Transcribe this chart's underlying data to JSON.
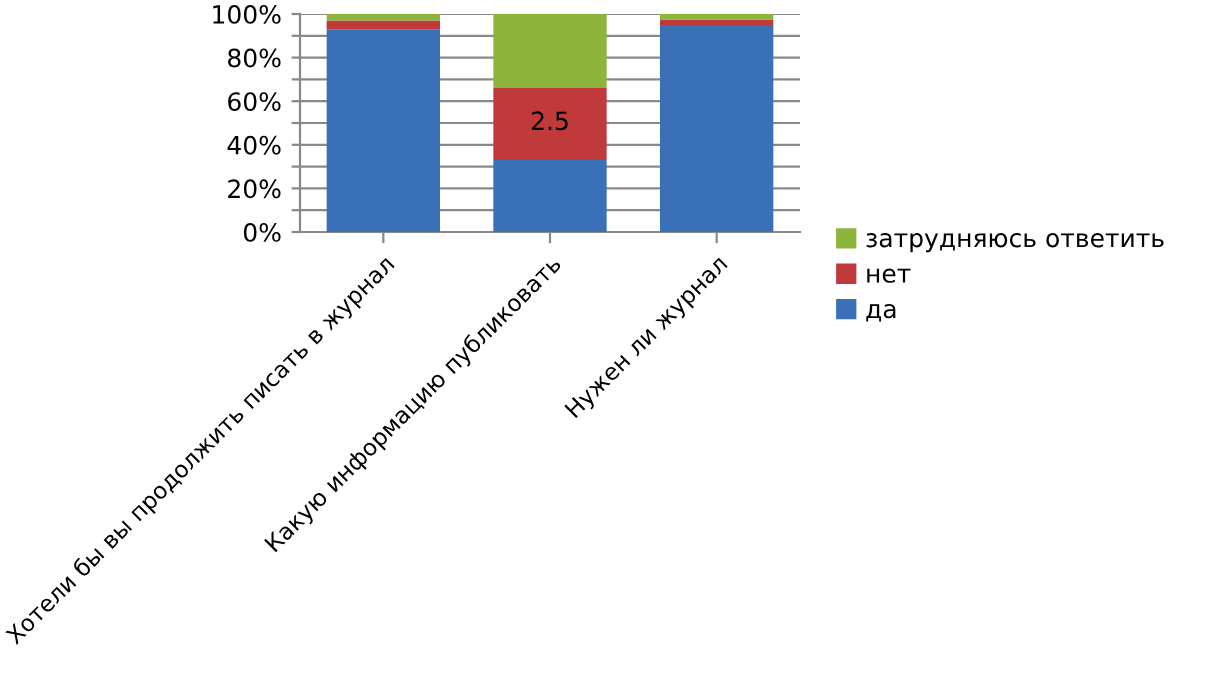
{
  "chart_data": {
    "type": "bar",
    "stacked": true,
    "categories": [
      "Хотели бы вы продолжить писать в журнал",
      "Какую информацию публиковать",
      "Нужен ли журнал"
    ],
    "series": [
      {
        "name": "да",
        "color": "#3a70b8",
        "values": [
          93,
          33,
          95
        ]
      },
      {
        "name": "нет",
        "color": "#c0393b",
        "values": [
          4,
          33,
          2.5
        ]
      },
      {
        "name": "затрудняюсь ответить",
        "color": "#8db53c",
        "values": [
          3,
          34,
          2.5
        ]
      }
    ],
    "ylim": [
      0,
      100
    ],
    "yticks": [
      {
        "value": 0,
        "label": "0%"
      },
      {
        "value": 10,
        "label": null
      },
      {
        "value": 20,
        "label": "20%"
      },
      {
        "value": 30,
        "label": null
      },
      {
        "value": 40,
        "label": "40%"
      },
      {
        "value": 50,
        "label": null
      },
      {
        "value": 60,
        "label": "60%"
      },
      {
        "value": 70,
        "label": null
      },
      {
        "value": 80,
        "label": "80%"
      },
      {
        "value": 90,
        "label": null
      },
      {
        "value": 100,
        "label": "100%"
      }
    ],
    "annotations": [
      "2.5"
    ],
    "grid": "y",
    "legend": "right"
  }
}
